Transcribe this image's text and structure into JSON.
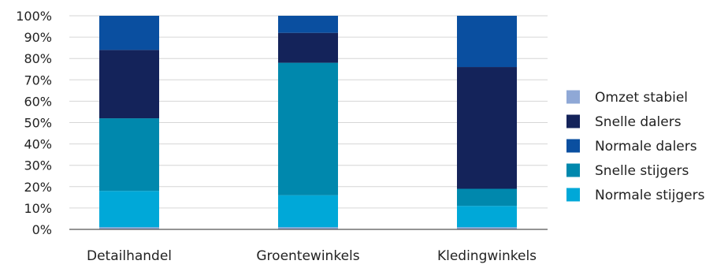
{
  "chart_data": {
    "type": "bar",
    "stacked": true,
    "percent": true,
    "categories": [
      "Detailhandel",
      "Groentewinkels",
      "Kledingwinkels"
    ],
    "series": [
      {
        "name": "Omzet stabiel",
        "color": "#8fa8d6",
        "values": [
          1,
          1,
          1
        ]
      },
      {
        "name": "Normale stijgers",
        "color": "#00a8d8",
        "values": [
          17,
          15,
          10
        ]
      },
      {
        "name": "Snelle stijgers",
        "color": "#0088ad",
        "values": [
          34,
          62,
          8
        ]
      },
      {
        "name": "Snelle dalers",
        "color": "#14235a",
        "values": [
          32,
          14,
          57
        ]
      },
      {
        "name": "Normale dalers",
        "color": "#0a4fa0",
        "values": [
          16,
          8,
          24
        ]
      }
    ],
    "legend_order": [
      "Omzet stabiel",
      "Snelle dalers",
      "Normale dalers",
      "Snelle stijgers",
      "Normale stijgers"
    ],
    "yticks": [
      "0%",
      "10%",
      "20%",
      "30%",
      "40%",
      "50%",
      "60%",
      "70%",
      "80%",
      "90%",
      "100%"
    ],
    "ylim": [
      0,
      100
    ],
    "grid": true,
    "legend_position": "right"
  }
}
